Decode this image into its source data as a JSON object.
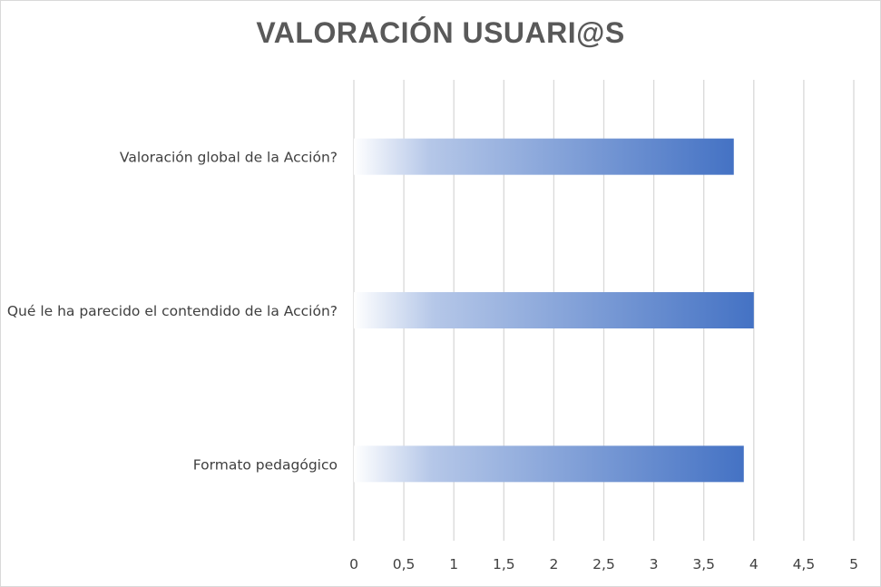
{
  "chart_data": {
    "type": "bar",
    "orientation": "horizontal",
    "title": "VALORACIÓN USUARI@S",
    "categories": [
      "Valoración global de la Acción?",
      "Qué le ha parecido el contendido de la Acción?",
      "Formato pedagógico"
    ],
    "values": [
      3.8,
      4.0,
      3.9
    ],
    "xlim": [
      0,
      5
    ],
    "xticks": [
      "0",
      "0,5",
      "1",
      "1,5",
      "2",
      "2,5",
      "3",
      "3,5",
      "4",
      "4,5",
      "5"
    ],
    "grid": true,
    "legend": "none",
    "colors": {
      "bar_start": "#ffffff",
      "bar_end": "#4472c4",
      "grid": "#d9d9d9",
      "text": "#404040",
      "title": "#595959"
    }
  }
}
